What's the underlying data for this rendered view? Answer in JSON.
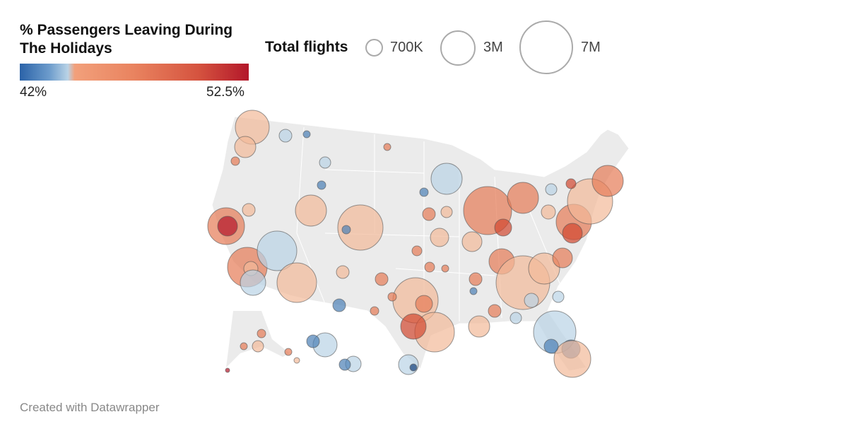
{
  "legend": {
    "title": "% Passengers Leaving During The Holidays",
    "min_label": "42%",
    "max_label": "52.5%",
    "colors": [
      "#2b63a8",
      "#b9d3e6",
      "#f2a07b",
      "#b3172a"
    ]
  },
  "size_legend": {
    "title": "Total flights",
    "items": [
      "700K",
      "3M",
      "7M"
    ]
  },
  "footer": "Created with Datawrapper"
}
